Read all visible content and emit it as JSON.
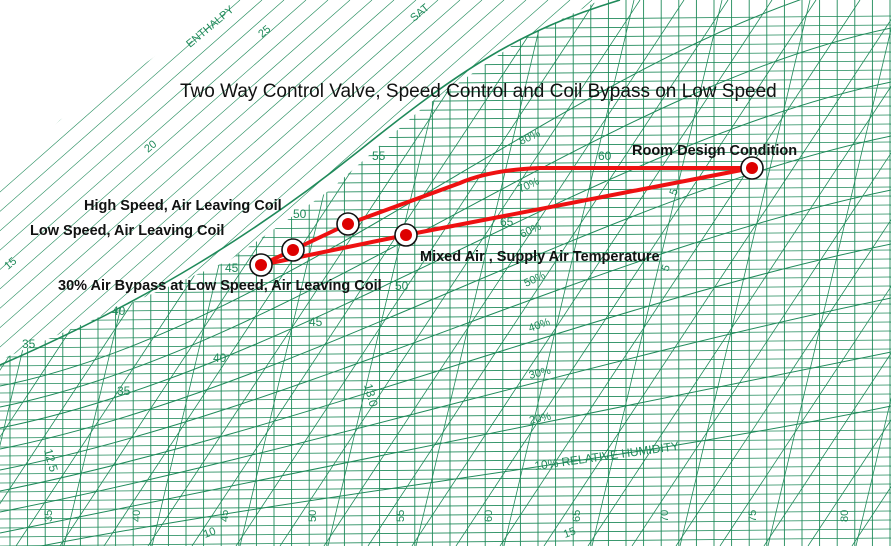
{
  "colors": {
    "grid": "#1f8a5a",
    "process_line": "#ee1111",
    "marker_fill": "#dd0000",
    "text": "#111111"
  },
  "title": "Two Way Control Valve, Speed Control and Coil Bypass on Low Speed",
  "grid_labels": {
    "enthalpy": "ENTHALPY",
    "saturation": "SAT",
    "relative_humidity": "10% RELATIVE HUMIDITY",
    "rh_percent": [
      "80%",
      "70%",
      "60%",
      "50%",
      "40%",
      "30%",
      "20%"
    ],
    "dry_bulb_bottom": [
      "35",
      "40",
      "45",
      "50",
      "55",
      "60",
      "65",
      "70",
      "75",
      "80"
    ],
    "enthalpy_left": [
      "15",
      "20",
      "25"
    ],
    "wet_bulb": [
      "35",
      "40",
      "45",
      "50",
      "55",
      "60",
      "65",
      "40",
      "45",
      "50",
      "35"
    ],
    "specific_volume": [
      "13.0",
      "12.5"
    ],
    "bottom_extra": [
      "10",
      "15"
    ],
    "right_side": [
      "5",
      "5"
    ]
  },
  "points": [
    {
      "name": "room-design-condition",
      "label": "Room Design Condition"
    },
    {
      "name": "high-speed-leaving-coil",
      "label": "High Speed, Air Leaving Coil"
    },
    {
      "name": "low-speed-leaving-coil",
      "label": "Low Speed, Air Leaving Coil"
    },
    {
      "name": "bypass-leaving-coil",
      "label": "30% Air Bypass at Low Speed, Air Leaving Coil"
    },
    {
      "name": "mixed-air-supply",
      "label": "Mixed Air , Supply Air Temperature"
    }
  ]
}
